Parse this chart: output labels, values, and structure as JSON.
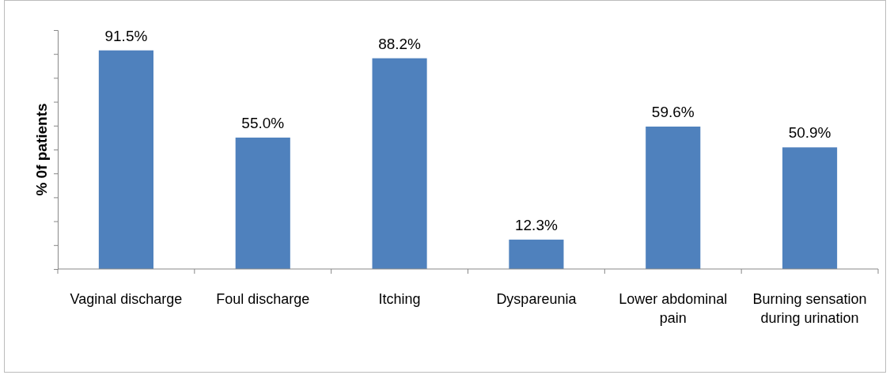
{
  "chart_data": {
    "type": "bar",
    "ylabel": "% 0f patients",
    "categories": [
      "Vaginal discharge",
      "Foul discharge",
      "Itching",
      "Dyspareunia",
      "Lower abdominal pain",
      "Burning sensation during urination"
    ],
    "values": [
      91.5,
      55.0,
      88.2,
      12.3,
      59.6,
      50.9
    ],
    "value_labels": [
      "91.5%",
      "55.0%",
      "88.2%",
      "12.3%",
      "59.6%",
      "50.9%"
    ],
    "color": "#4f81bd",
    "ylim": [
      0,
      100
    ],
    "yticks": [
      {
        "value": 0,
        "label": null
      },
      {
        "value": 10,
        "label": null
      },
      {
        "value": 20,
        "label": null
      },
      {
        "value": 30,
        "label": null
      },
      {
        "value": 40,
        "label": null
      },
      {
        "value": 50,
        "label": null
      },
      {
        "value": 60,
        "label": null
      },
      {
        "value": 70,
        "label": null
      },
      {
        "value": 80,
        "label": null
      },
      {
        "value": 90,
        "label": null
      },
      {
        "value": 100,
        "label": null
      }
    ],
    "tick_labels": "x",
    "grid": false
  }
}
